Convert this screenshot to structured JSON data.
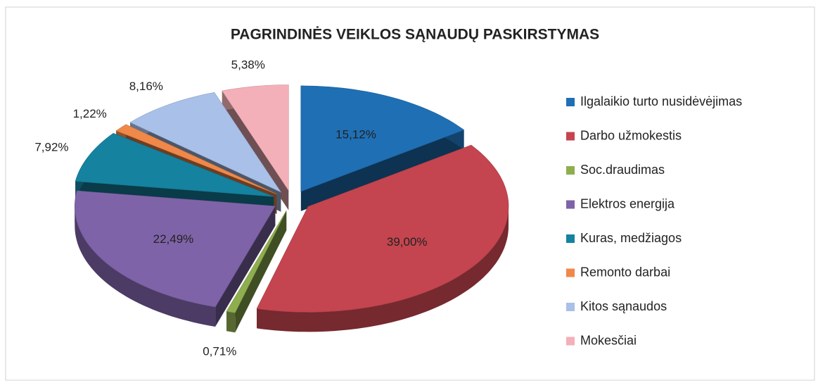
{
  "chart_data": {
    "type": "pie",
    "title": "PAGRINDINĖS VEIKLOS SĄNAUDŲ PASKIRSTYMAS",
    "categories": [
      "Ilgalaikio  turto nusidėvėjimas",
      "Darbo užmokestis",
      "Soc.draudimas",
      "Elektros energija",
      "Kuras, medžiagos",
      "Remonto darbai",
      "Kitos sąnaudos",
      "Mokesčiai"
    ],
    "values": [
      15.12,
      39.0,
      0.71,
      22.49,
      7.92,
      1.22,
      8.16,
      5.38
    ],
    "value_labels": [
      "15,12%",
      "39,00%",
      "0,71%",
      "22,49%",
      "7,92%",
      "1,22%",
      "8,16%",
      "5,38%"
    ],
    "colors": [
      "#1f6fb5",
      "#c4454f",
      "#8fae4f",
      "#7f63a8",
      "#1582a0",
      "#f0884a",
      "#a9c0e8",
      "#f4b0b8"
    ],
    "legend": "right"
  }
}
